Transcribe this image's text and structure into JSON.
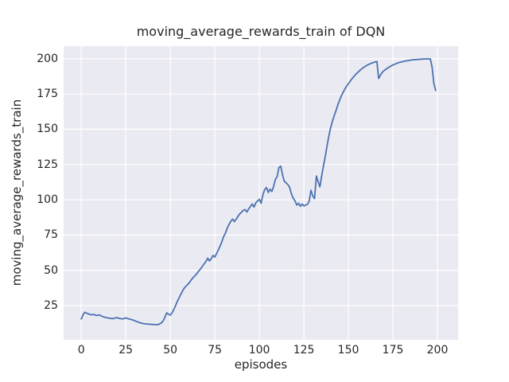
{
  "chart_data": {
    "type": "line",
    "title": "moving_average_rewards_train of DQN",
    "xlabel": "episodes",
    "ylabel": "moving_average_rewards_train",
    "legend": false,
    "grid": true,
    "xticks": [
      0,
      25,
      50,
      75,
      100,
      125,
      150,
      175,
      200
    ],
    "yticks": [
      25,
      50,
      75,
      100,
      125,
      150,
      175,
      200
    ],
    "xlim": [
      -9.9,
      211.6
    ],
    "ylim": [
      0.7,
      208.9
    ],
    "style": {
      "axes_bg": "#eaeaf2",
      "grid_color": "#ffffff",
      "line_color": "#4c72b0",
      "text_color": "#262626",
      "fig_bg": "#ffffff"
    },
    "series": [
      {
        "name": "moving_average_rewards_train",
        "color": "#4c72b0",
        "x_start": 0,
        "x_step": 1,
        "y": [
          15.5,
          18.5,
          20.2,
          19.6,
          19.1,
          18.7,
          18.4,
          18.7,
          18.2,
          17.9,
          18.4,
          17.8,
          17.2,
          16.8,
          16.5,
          16.2,
          16.0,
          15.8,
          15.7,
          16.1,
          16.5,
          16.0,
          15.7,
          15.5,
          15.8,
          16.2,
          15.8,
          15.4,
          15.1,
          14.8,
          14.2,
          13.8,
          13.3,
          12.8,
          12.5,
          12.2,
          12.0,
          11.9,
          11.8,
          11.7,
          11.6,
          11.5,
          11.5,
          11.5,
          11.9,
          12.8,
          14.2,
          16.8,
          19.8,
          18.8,
          18.2,
          19.8,
          22.3,
          25.2,
          28.1,
          30.6,
          33.2,
          35.6,
          37.6,
          39.0,
          40.2,
          41.8,
          43.6,
          45.1,
          46.3,
          47.8,
          49.5,
          51.0,
          52.8,
          54.6,
          56.2,
          58.6,
          56.6,
          58.2,
          60.5,
          59.4,
          62.0,
          64.5,
          67.2,
          70.5,
          74.0,
          76.5,
          80.0,
          82.5,
          84.8,
          86.3,
          84.5,
          86.2,
          88.2,
          90.0,
          91.2,
          92.5,
          93.0,
          91.3,
          93.5,
          95.2,
          97.0,
          94.8,
          97.8,
          99.2,
          100.3,
          97.5,
          103.5,
          107.2,
          108.7,
          105.2,
          107.5,
          105.8,
          109.5,
          114.5,
          116.5,
          122.8,
          123.8,
          117.8,
          113.2,
          112.0,
          110.8,
          108.8,
          104.2,
          101.2,
          99.2,
          96.2,
          97.6,
          95.4,
          97.0,
          95.6,
          96.2,
          96.8,
          99.0,
          106.8,
          102.6,
          100.8,
          116.8,
          112.8,
          109.2,
          117.0,
          124.0,
          130.5,
          138.0,
          145.0,
          151.0,
          155.5,
          159.5,
          163.0,
          167.0,
          170.5,
          173.5,
          176.0,
          178.5,
          180.5,
          182.3,
          184.0,
          185.7,
          187.3,
          188.7,
          190.0,
          191.2,
          192.3,
          193.3,
          194.2,
          195.0,
          195.7,
          196.3,
          196.8,
          197.3,
          197.7,
          198.0,
          186.0,
          188.5,
          190.3,
          191.5,
          192.5,
          193.4,
          194.2,
          194.9,
          195.5,
          196.1,
          196.6,
          197.1,
          197.5,
          197.8,
          198.1,
          198.4,
          198.6,
          198.8,
          199.0,
          199.2,
          199.3,
          199.4,
          199.5,
          199.6,
          199.7,
          199.8,
          199.8,
          199.9,
          199.9,
          199.9,
          194.0,
          182.5,
          177.5
        ]
      }
    ]
  }
}
